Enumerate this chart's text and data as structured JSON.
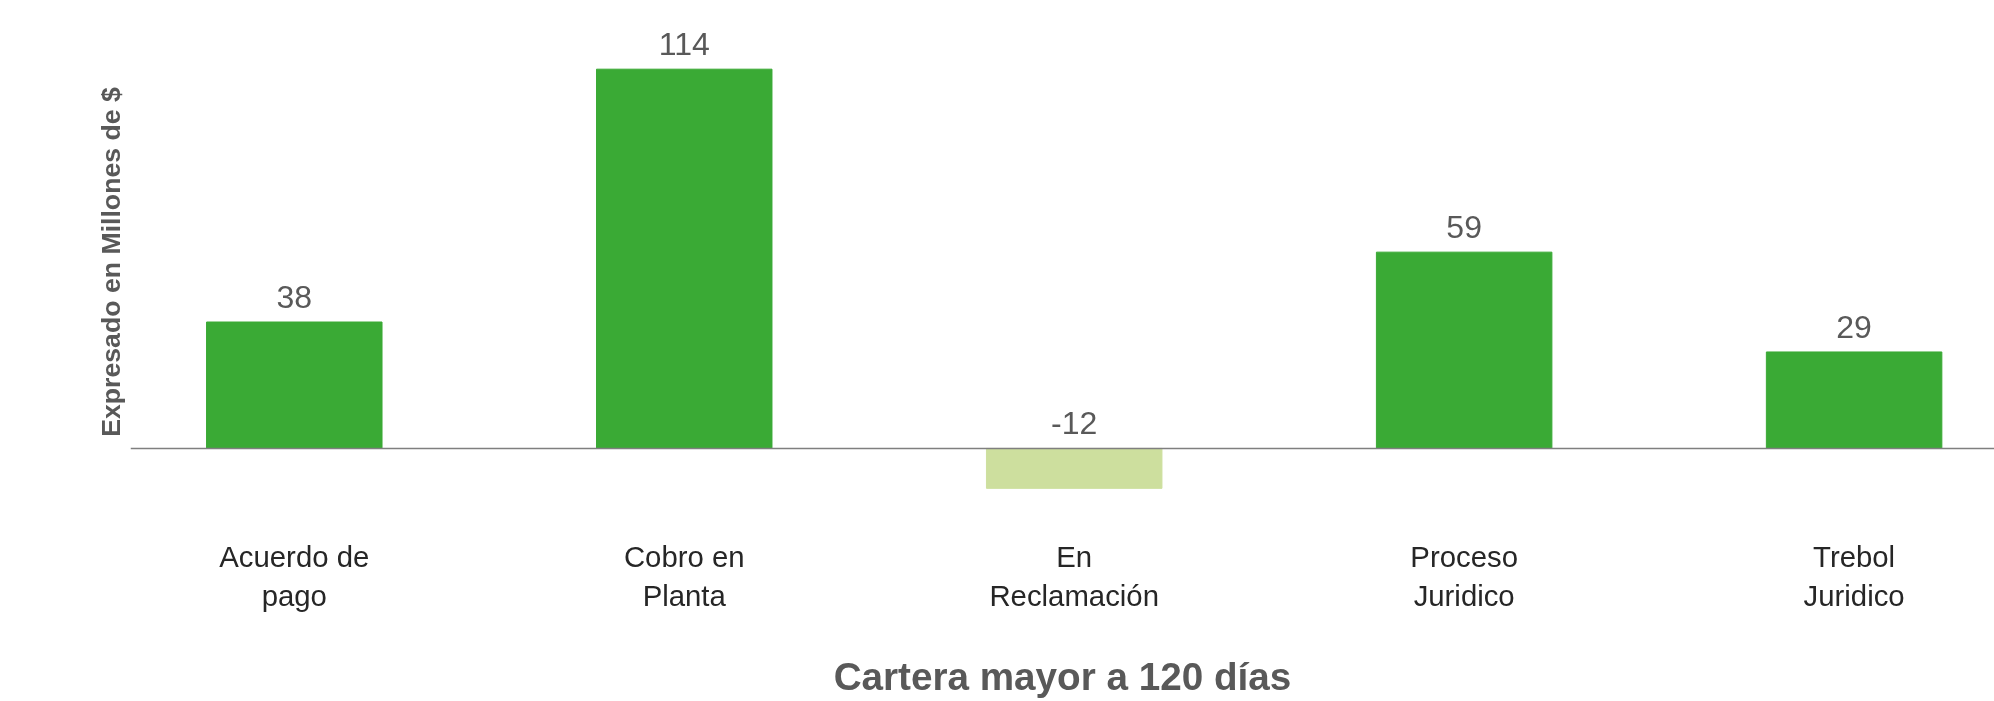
{
  "chart_data": {
    "type": "bar",
    "xlabel": "Cartera mayor a 120 días",
    "ylabel": "Expresado en Millones de $",
    "categories": [
      "Acuerdo de pago",
      "Cobro en Planta",
      "En Reclamación",
      "Proceso Juridico",
      "Trebol Juridico"
    ],
    "values": [
      38,
      114,
      -12,
      59,
      29
    ],
    "colors": [
      "#3aaa35",
      "#3aaa35",
      "#cddf9e",
      "#3aaa35",
      "#3aaa35"
    ],
    "data_labels": true,
    "grid": false
  }
}
